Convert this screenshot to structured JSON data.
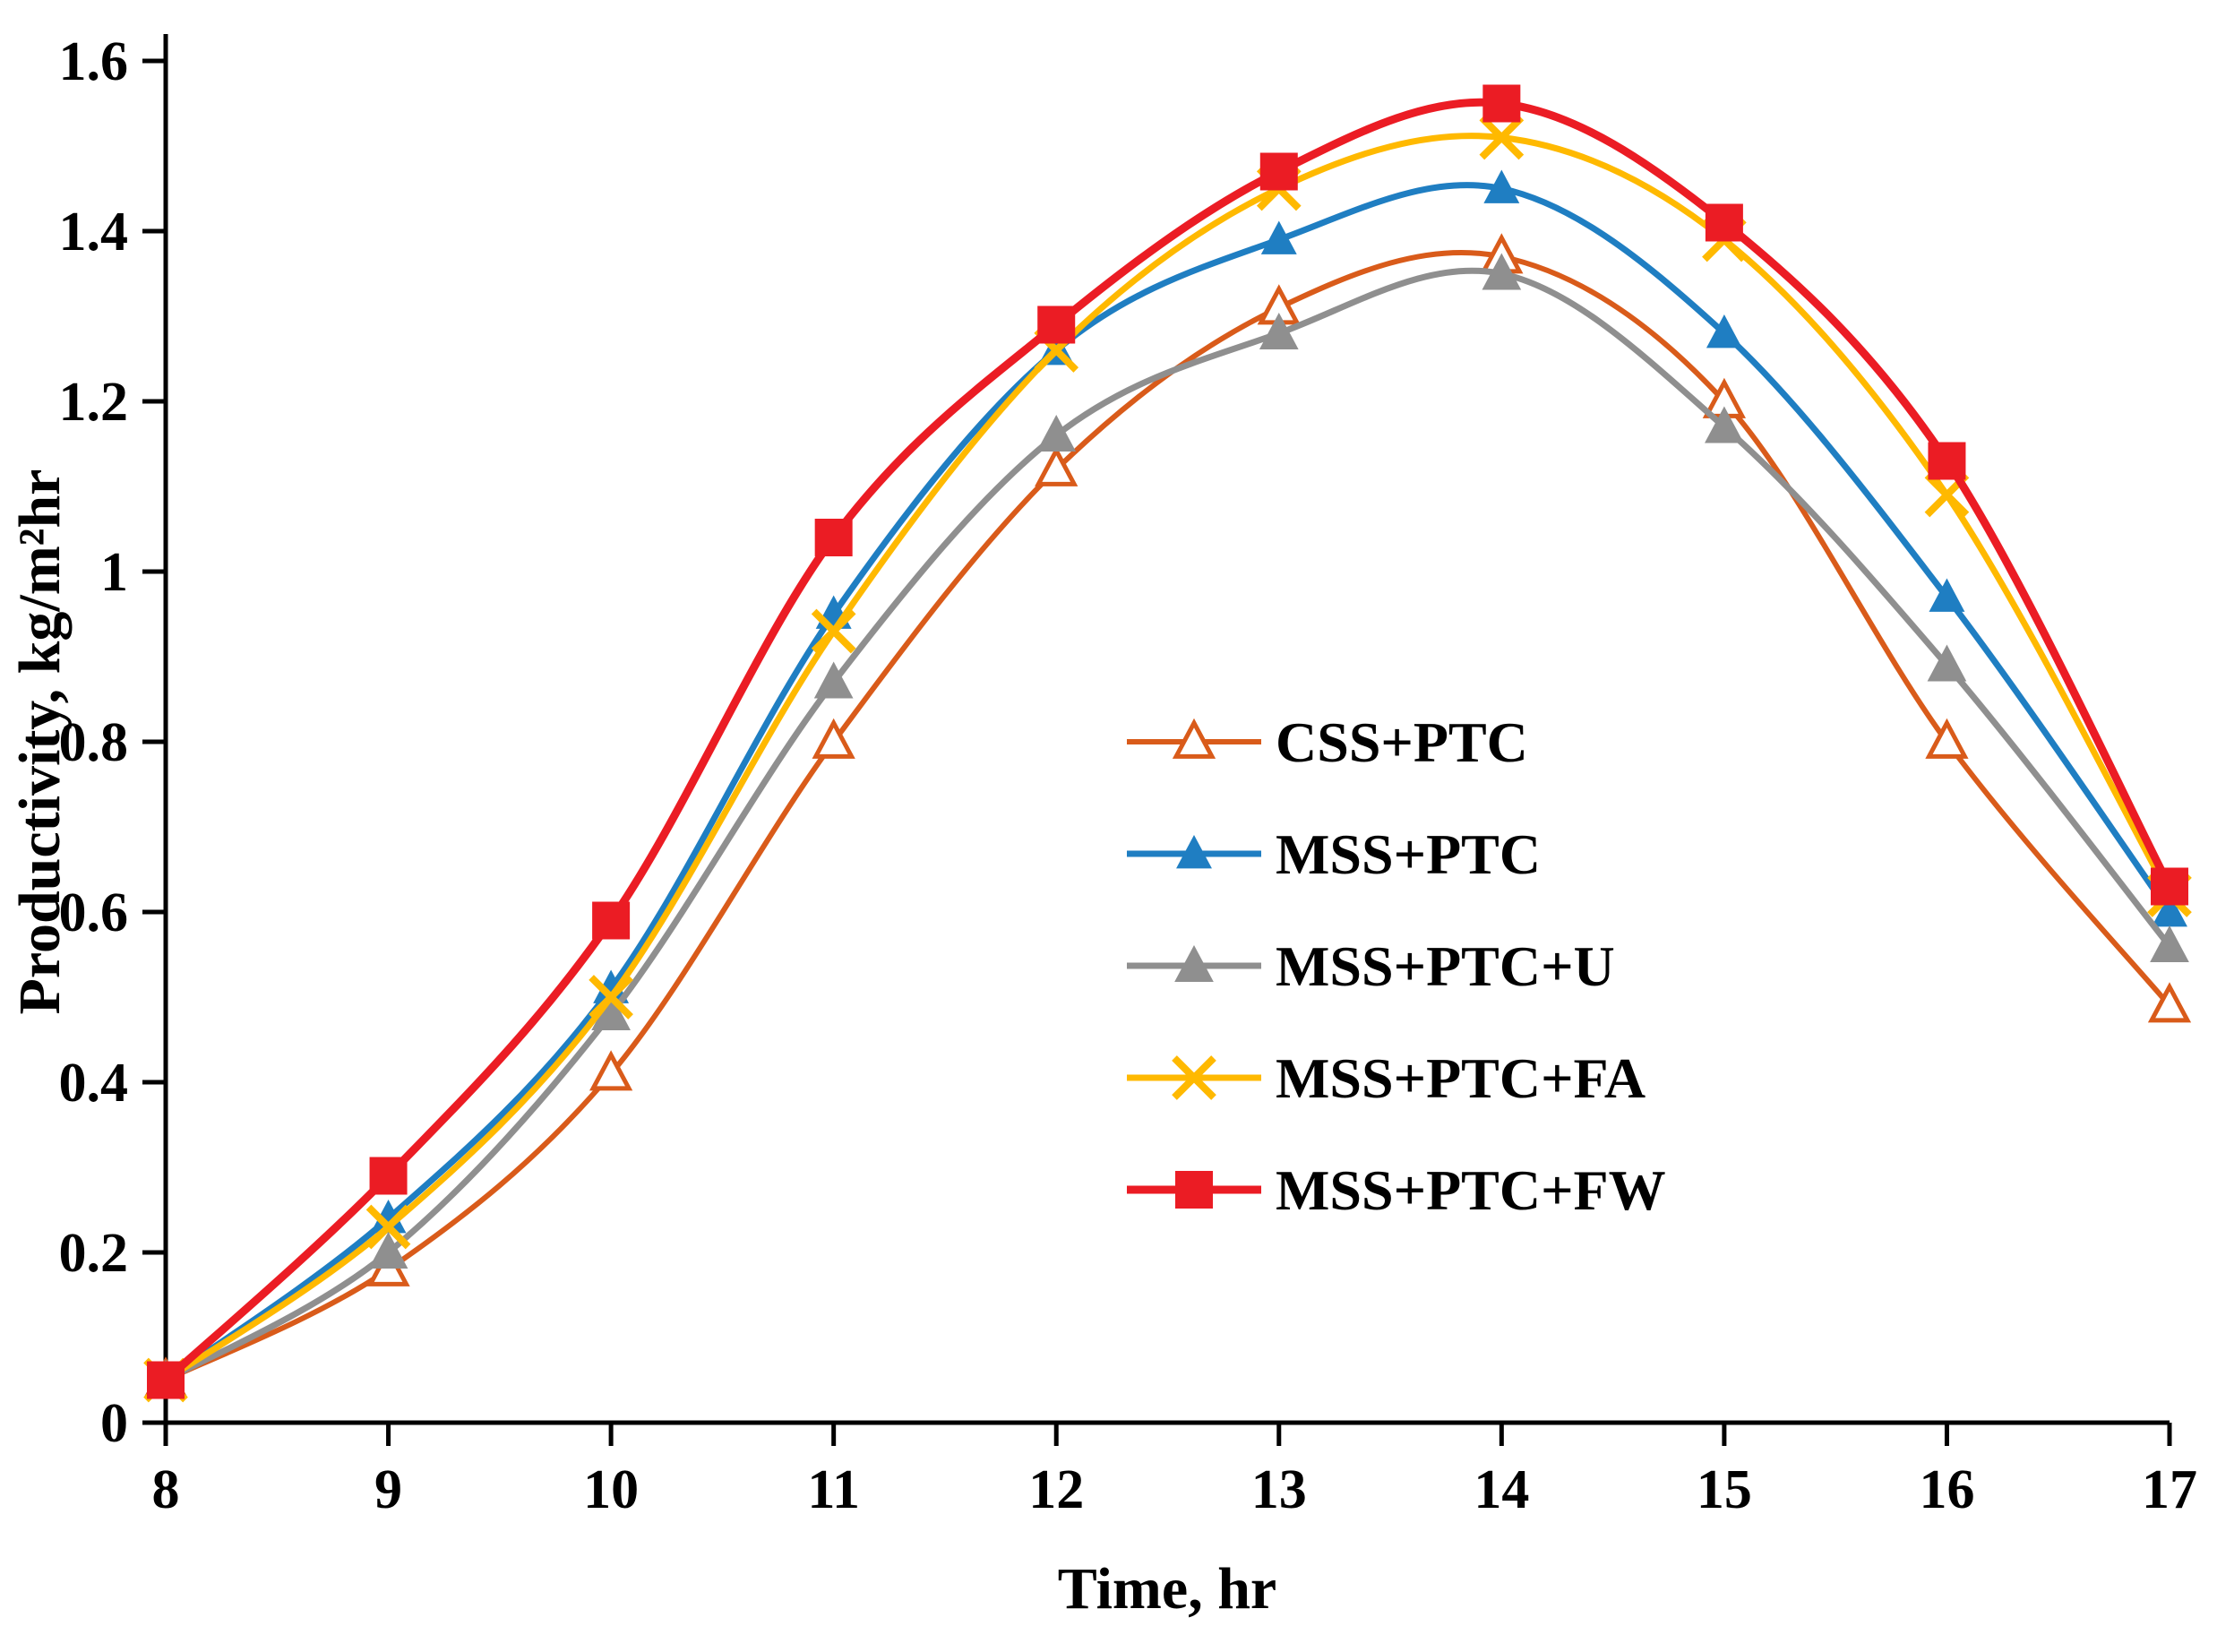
{
  "chart_data": {
    "type": "line",
    "title": "",
    "xlabel": "Time, hr",
    "ylabel": "Productivity, kg/m²hr",
    "x": [
      8,
      9,
      10,
      11,
      12,
      13,
      14,
      15,
      16,
      17
    ],
    "xlim": [
      8,
      17
    ],
    "ylim": [
      0,
      1.6
    ],
    "xtick_labels": [
      "8",
      "9",
      "10",
      "11",
      "12",
      "13",
      "14",
      "15",
      "16",
      "17"
    ],
    "yticks": [
      0,
      0.2,
      0.4,
      0.6,
      0.8,
      1,
      1.2,
      1.4,
      1.6
    ],
    "ytick_labels": [
      "0",
      "0.2",
      "0.4",
      "0.6",
      "0.8",
      "1",
      "1.2",
      "1.4",
      "1.6"
    ],
    "grid": false,
    "legend_position": "inside-center-right",
    "series": [
      {
        "name": "CSS+PTC",
        "color": "#D95B1A",
        "marker": "triangle-open",
        "line_width": 6,
        "values": [
          0.05,
          0.18,
          0.41,
          0.8,
          1.12,
          1.31,
          1.37,
          1.2,
          0.8,
          0.49
        ]
      },
      {
        "name": "MSS+PTC",
        "color": "#1F7EC2",
        "marker": "triangle",
        "line_width": 7,
        "values": [
          0.05,
          0.24,
          0.51,
          0.95,
          1.26,
          1.39,
          1.45,
          1.28,
          0.97,
          0.6
        ]
      },
      {
        "name": "MSS+PTC+U",
        "color": "#8F8F8F",
        "marker": "triangle",
        "line_width": 7,
        "values": [
          0.05,
          0.2,
          0.48,
          0.87,
          1.16,
          1.28,
          1.35,
          1.17,
          0.89,
          0.56
        ]
      },
      {
        "name": "MSS+PTC+FA",
        "color": "#FFB900",
        "marker": "x",
        "line_width": 7,
        "values": [
          0.05,
          0.23,
          0.5,
          0.93,
          1.26,
          1.45,
          1.51,
          1.39,
          1.09,
          0.62
        ]
      },
      {
        "name": "MSS+PTC+FW",
        "color": "#EB1C24",
        "marker": "square",
        "line_width": 9,
        "values": [
          0.05,
          0.29,
          0.59,
          1.04,
          1.29,
          1.47,
          1.55,
          1.41,
          1.13,
          0.63
        ]
      }
    ]
  }
}
